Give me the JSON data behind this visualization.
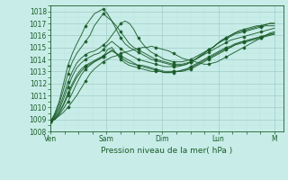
{
  "title": "",
  "xlabel": "Pression niveau de la mer( hPa )",
  "ylim": [
    1008,
    1018.5
  ],
  "xlim": [
    0,
    100
  ],
  "bg_color": "#c8ede8",
  "grid_major_color": "#a0ccc8",
  "grid_minor_color": "#b8e0dc",
  "line_color": "#1a5c2a",
  "xtick_labels": [
    "Ven",
    "Sam",
    "Dim",
    "Lun",
    "M"
  ],
  "xtick_positions": [
    0,
    24,
    48,
    72,
    96
  ],
  "ytick_labels": [
    "1008",
    "1009",
    "1010",
    "1011",
    "1012",
    "1013",
    "1014",
    "1015",
    "1016",
    "1017",
    "1018"
  ],
  "ytick_positions": [
    1008,
    1009,
    1010,
    1011,
    1012,
    1013,
    1014,
    1015,
    1016,
    1017,
    1018
  ],
  "series": [
    [
      1008.8,
      1009.0,
      1009.3,
      1009.6,
      1010.0,
      1010.5,
      1011.0,
      1011.6,
      1012.2,
      1012.8,
      1013.2,
      1013.5,
      1013.8,
      1014.0,
      1014.2,
      1014.3,
      1014.5,
      1014.6,
      1014.7,
      1014.8,
      1014.9,
      1015.0,
      1015.0,
      1015.1,
      1015.0,
      1014.9,
      1014.8,
      1014.7,
      1014.5,
      1014.3,
      1014.1,
      1014.0,
      1013.9,
      1013.8,
      1013.7,
      1013.6,
      1013.6,
      1013.7,
      1013.8,
      1014.0,
      1014.2,
      1014.4,
      1014.6,
      1014.8,
      1015.0,
      1015.2,
      1015.4,
      1015.6,
      1015.8,
      1016.0,
      1016.2,
      1016.3
    ],
    [
      1008.8,
      1009.0,
      1009.4,
      1009.9,
      1010.5,
      1011.2,
      1012.0,
      1012.7,
      1013.2,
      1013.5,
      1013.8,
      1014.0,
      1014.2,
      1014.5,
      1014.8,
      1014.5,
      1014.2,
      1013.9,
      1013.7,
      1013.6,
      1013.5,
      1013.5,
      1013.4,
      1013.3,
      1013.2,
      1013.1,
      1013.0,
      1013.0,
      1013.0,
      1013.0,
      1013.0,
      1013.1,
      1013.2,
      1013.4,
      1013.6,
      1013.8,
      1014.0,
      1014.2,
      1014.4,
      1014.6,
      1014.8,
      1015.0,
      1015.2,
      1015.4,
      1015.5,
      1015.6,
      1015.7,
      1015.8,
      1015.9,
      1016.0,
      1016.1,
      1016.2
    ],
    [
      1008.8,
      1009.0,
      1009.5,
      1010.2,
      1011.0,
      1011.8,
      1012.5,
      1013.0,
      1013.4,
      1013.6,
      1013.8,
      1014.0,
      1014.2,
      1014.8,
      1015.0,
      1014.5,
      1014.0,
      1013.7,
      1013.5,
      1013.4,
      1013.3,
      1013.2,
      1013.1,
      1013.0,
      1013.0,
      1013.0,
      1012.9,
      1012.9,
      1013.0,
      1013.0,
      1013.1,
      1013.2,
      1013.3,
      1013.5,
      1013.7,
      1013.9,
      1014.1,
      1014.3,
      1014.5,
      1014.7,
      1014.9,
      1015.0,
      1015.2,
      1015.3,
      1015.4,
      1015.5,
      1015.6,
      1015.7,
      1015.8,
      1015.9,
      1016.0,
      1016.1
    ],
    [
      1008.8,
      1009.1,
      1009.6,
      1010.3,
      1011.2,
      1012.0,
      1012.7,
      1013.2,
      1013.5,
      1013.7,
      1013.9,
      1014.1,
      1014.3,
      1014.5,
      1014.7,
      1014.5,
      1014.3,
      1014.1,
      1013.9,
      1013.7,
      1013.5,
      1013.4,
      1013.3,
      1013.2,
      1013.1,
      1013.0,
      1012.9,
      1012.9,
      1012.9,
      1013.0,
      1013.1,
      1013.2,
      1013.4,
      1013.6,
      1013.8,
      1014.0,
      1014.2,
      1014.4,
      1014.6,
      1014.8,
      1015.0,
      1015.1,
      1015.3,
      1015.4,
      1015.5,
      1015.6,
      1015.7,
      1015.8,
      1015.9,
      1016.0,
      1016.1,
      1016.1
    ],
    [
      1008.8,
      1009.2,
      1009.8,
      1010.7,
      1011.7,
      1012.6,
      1013.3,
      1013.7,
      1014.0,
      1014.2,
      1014.4,
      1014.5,
      1014.8,
      1015.2,
      1015.5,
      1015.2,
      1014.9,
      1014.6,
      1014.4,
      1014.2,
      1014.0,
      1013.9,
      1013.8,
      1013.7,
      1013.6,
      1013.5,
      1013.4,
      1013.4,
      1013.4,
      1013.4,
      1013.5,
      1013.6,
      1013.8,
      1014.0,
      1014.2,
      1014.4,
      1014.6,
      1014.8,
      1015.0,
      1015.2,
      1015.4,
      1015.6,
      1015.7,
      1015.8,
      1015.9,
      1016.0,
      1016.1,
      1016.2,
      1016.3,
      1016.4,
      1016.5,
      1016.6
    ],
    [
      1008.8,
      1009.3,
      1010.0,
      1011.0,
      1012.1,
      1013.0,
      1013.7,
      1014.1,
      1014.4,
      1014.6,
      1014.7,
      1014.9,
      1015.2,
      1015.5,
      1016.0,
      1016.5,
      1017.0,
      1017.2,
      1017.0,
      1016.5,
      1015.8,
      1015.3,
      1014.9,
      1014.6,
      1014.4,
      1014.2,
      1014.0,
      1013.9,
      1013.8,
      1013.8,
      1013.8,
      1013.9,
      1014.0,
      1014.2,
      1014.4,
      1014.6,
      1014.8,
      1015.0,
      1015.3,
      1015.5,
      1015.7,
      1015.9,
      1016.1,
      1016.2,
      1016.3,
      1016.4,
      1016.5,
      1016.6,
      1016.7,
      1016.8,
      1016.8,
      1016.8
    ],
    [
      1008.8,
      1009.4,
      1010.3,
      1011.5,
      1012.8,
      1013.8,
      1014.5,
      1015.0,
      1015.5,
      1016.0,
      1016.8,
      1017.3,
      1017.8,
      1017.5,
      1017.2,
      1016.8,
      1016.3,
      1015.8,
      1015.3,
      1015.0,
      1014.8,
      1014.6,
      1014.4,
      1014.2,
      1014.0,
      1013.9,
      1013.8,
      1013.7,
      1013.6,
      1013.6,
      1013.6,
      1013.7,
      1013.8,
      1014.0,
      1014.3,
      1014.5,
      1014.8,
      1015.0,
      1015.3,
      1015.6,
      1015.8,
      1016.0,
      1016.2,
      1016.3,
      1016.4,
      1016.5,
      1016.6,
      1016.7,
      1016.8,
      1016.9,
      1017.0,
      1017.0
    ],
    [
      1008.8,
      1009.5,
      1010.5,
      1012.0,
      1013.5,
      1014.5,
      1015.3,
      1016.0,
      1016.8,
      1017.3,
      1017.8,
      1018.0,
      1018.2,
      1017.8,
      1017.2,
      1016.5,
      1015.8,
      1015.3,
      1015.0,
      1014.8,
      1014.6,
      1014.4,
      1014.2,
      1014.0,
      1013.9,
      1013.8,
      1013.7,
      1013.6,
      1013.5,
      1013.5,
      1013.5,
      1013.6,
      1013.8,
      1014.0,
      1014.2,
      1014.5,
      1014.8,
      1015.0,
      1015.3,
      1015.6,
      1015.8,
      1016.0,
      1016.2,
      1016.4,
      1016.5,
      1016.6,
      1016.7,
      1016.8,
      1016.8,
      1016.9,
      1017.0,
      1017.0
    ]
  ]
}
